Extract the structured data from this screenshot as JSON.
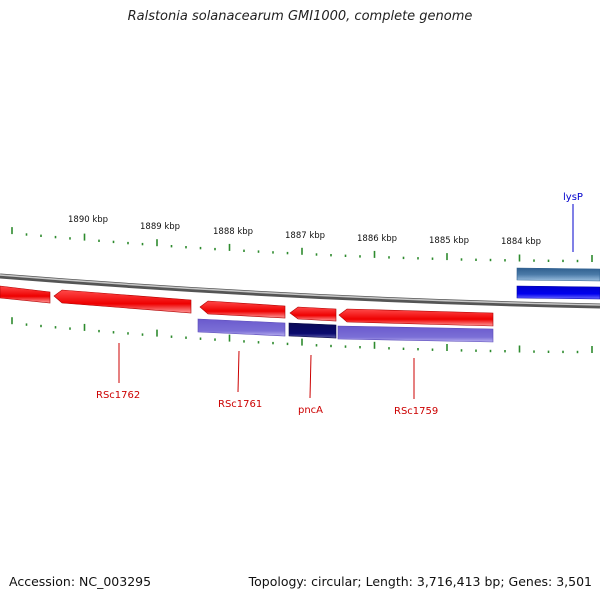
{
  "title": "Ralstonia solanacearum GMI1000, complete genome",
  "footer": {
    "accession": "Accession: NC_003295",
    "summary": "Topology: circular; Length: 3,716,413 bp; Genes: 3,501"
  },
  "scale": {
    "unit": "kbp",
    "labels": [
      {
        "kbp": 1890,
        "text": "1890 kbp"
      },
      {
        "kbp": 1889,
        "text": "1889 kbp"
      },
      {
        "kbp": 1888,
        "text": "1888 kbp"
      },
      {
        "kbp": 1887,
        "text": "1887 kbp"
      },
      {
        "kbp": 1886,
        "text": "1886 kbp"
      },
      {
        "kbp": 1885,
        "text": "1885 kbp"
      },
      {
        "kbp": 1884,
        "text": "1884 kbp"
      }
    ]
  },
  "features": [
    {
      "label": "",
      "strand": "forward",
      "color": "#ee0000"
    },
    {
      "label": "RSc1762",
      "strand": "forward",
      "color": "#ee0000"
    },
    {
      "label": "RSc1761",
      "strand": "forward",
      "color": "#ee0000"
    },
    {
      "label": "pncA",
      "strand": "forward",
      "color": "#ee0000"
    },
    {
      "label": "RSc1759",
      "strand": "forward",
      "color": "#ee0000"
    },
    {
      "label": "lysP",
      "strand": "outer",
      "color": "#4a7aa8"
    },
    {
      "label": "",
      "strand": "outer",
      "color": "#0000ee"
    }
  ],
  "colors": {
    "gene_red": "#ee0000",
    "cds_purple": "#7b6fd6",
    "cds_navy": "#0a0a6e",
    "tick_green": "#2e8b2e",
    "backbone": "#808080",
    "label_red": "#cc0000",
    "label_blue": "#0000cc"
  }
}
